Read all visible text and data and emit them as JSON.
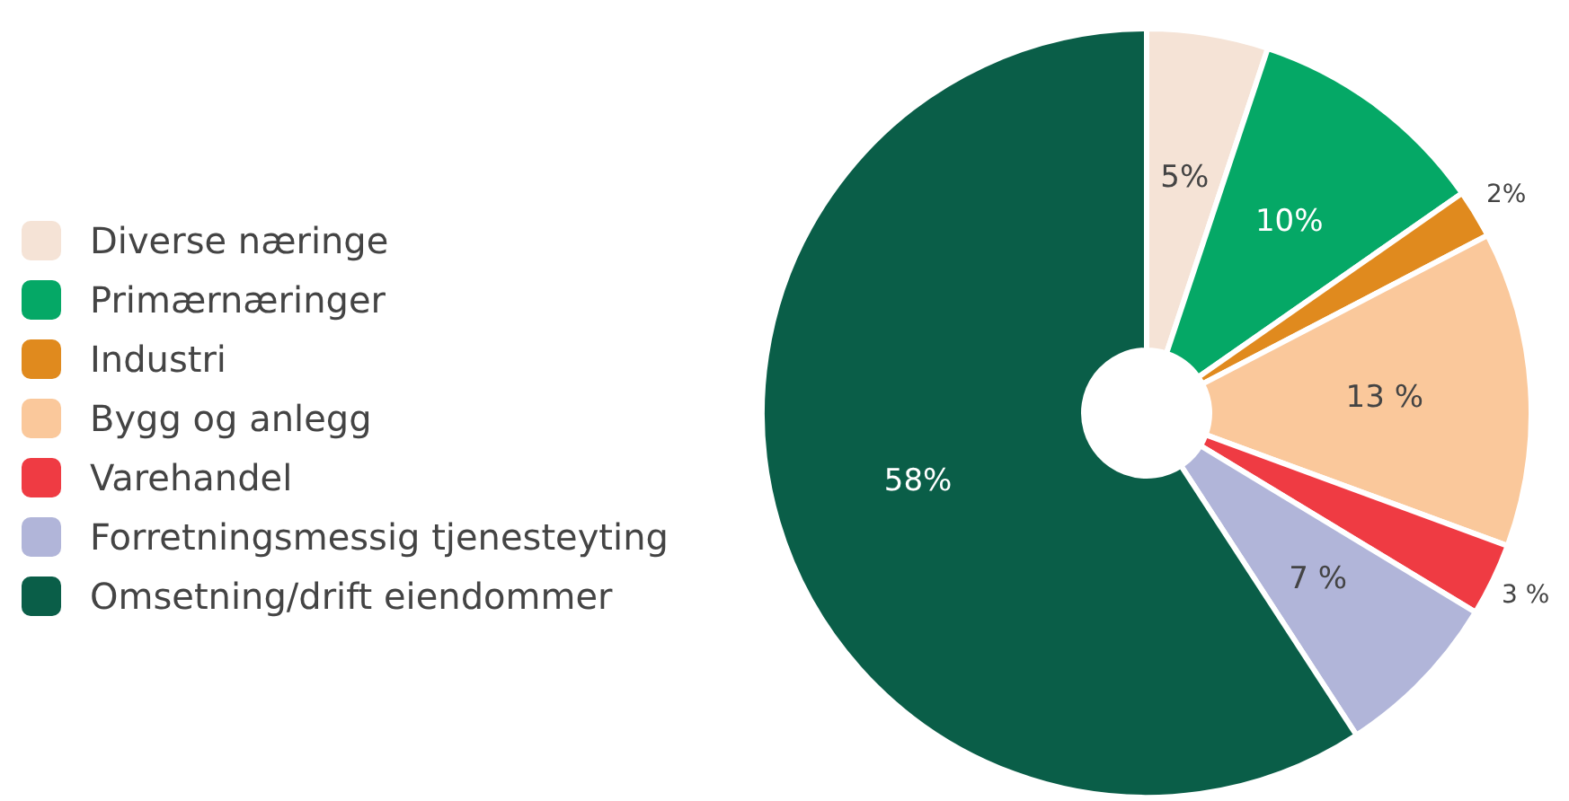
{
  "chart_data": {
    "type": "donut",
    "categories": [
      "Diverse næringe",
      "Primærnæringer",
      "Industri",
      "Bygg og anlegg",
      "Varehandel",
      "Forretningsmessig tjenesteyting",
      "Omsetning/drift eiendommer"
    ],
    "values": [
      5,
      10,
      2,
      13,
      3,
      7,
      58
    ],
    "colors": [
      "#f5e3d6",
      "#05a866",
      "#e08a1e",
      "#fac89b",
      "#ef3b43",
      "#b1b5d9",
      "#0a5e48"
    ],
    "value_labels": [
      "5%",
      "10%",
      "2%",
      "13 %",
      "3 %",
      "7 %",
      "58%"
    ],
    "legend": "left"
  }
}
